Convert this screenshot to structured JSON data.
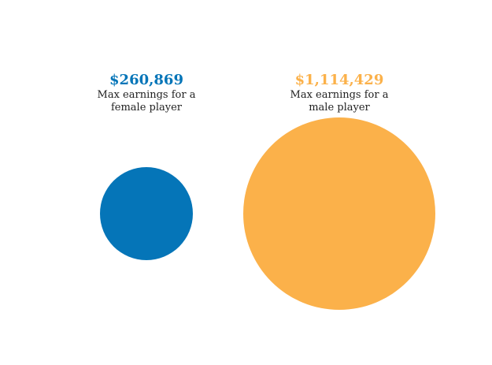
{
  "chart_data": {
    "type": "bubble",
    "series": [
      {
        "value": 260869,
        "value_label": "$260,869",
        "description_lines": [
          "Max earnings for a",
          "female player"
        ],
        "color": "#0575b8"
      },
      {
        "value": 1114429,
        "value_label": "$1,114,429",
        "description_lines": [
          "Max earnings for a",
          "male player"
        ],
        "color": "#fbb14a"
      }
    ],
    "title": "",
    "area_proportional": true
  }
}
